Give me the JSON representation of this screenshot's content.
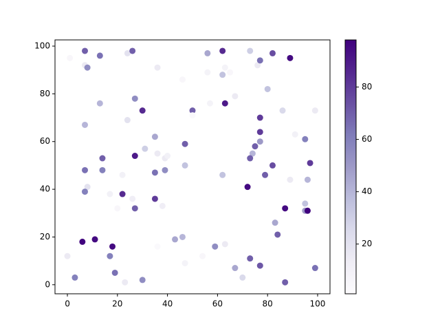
{
  "chart_data": {
    "type": "scatter",
    "x": [
      1,
      7,
      7,
      8,
      13,
      24,
      26,
      36,
      46,
      56,
      56,
      62,
      62,
      63,
      65,
      73,
      76,
      77,
      82,
      89,
      13,
      27,
      30,
      24,
      7,
      50,
      50,
      57,
      63,
      67,
      80,
      86,
      99,
      77,
      77,
      77,
      75,
      74,
      73,
      91,
      95,
      97,
      31,
      35,
      36,
      39,
      40,
      27,
      47,
      47,
      14,
      7,
      14,
      22,
      35,
      39,
      62,
      82,
      79,
      89,
      96,
      72,
      8,
      7,
      17,
      22,
      26,
      35,
      38,
      20,
      27,
      95,
      95,
      96,
      87,
      83,
      84,
      6,
      11,
      18,
      17,
      36,
      43,
      46,
      54,
      59,
      63,
      0,
      3,
      19,
      23,
      30,
      47,
      67,
      70,
      73,
      77,
      87,
      99
    ],
    "y": [
      95,
      98,
      92,
      91,
      96,
      97,
      98,
      91,
      86,
      97,
      89,
      98,
      88,
      91,
      89,
      98,
      92,
      94,
      97,
      95,
      76,
      78,
      73,
      69,
      67,
      73,
      71,
      76,
      76,
      79,
      82,
      73,
      73,
      70,
      64,
      60,
      58,
      55,
      53,
      63,
      61,
      51,
      57,
      62,
      55,
      53,
      54,
      54,
      59,
      50,
      53,
      48,
      48,
      46,
      47,
      48,
      46,
      50,
      46,
      44,
      44,
      41,
      41,
      39,
      38,
      38,
      36,
      36,
      33,
      32,
      32,
      34,
      31,
      31,
      32,
      26,
      21,
      18,
      19,
      16,
      12,
      16,
      19,
      20,
      12,
      16,
      17,
      12,
      3,
      5,
      1,
      2,
      9,
      7,
      3,
      11,
      8,
      1,
      7
    ],
    "c": [
      5,
      70,
      15,
      55,
      65,
      20,
      70,
      15,
      5,
      45,
      8,
      85,
      35,
      8,
      5,
      30,
      15,
      65,
      75,
      95,
      40,
      55,
      85,
      20,
      40,
      70,
      3,
      8,
      90,
      15,
      35,
      25,
      15,
      80,
      80,
      50,
      70,
      40,
      70,
      10,
      60,
      80,
      30,
      45,
      15,
      15,
      10,
      90,
      70,
      35,
      70,
      65,
      60,
      10,
      65,
      55,
      35,
      75,
      70,
      15,
      40,
      95,
      20,
      60,
      10,
      85,
      12,
      80,
      12,
      5,
      70,
      35,
      50,
      98,
      95,
      45,
      70,
      97,
      95,
      95,
      60,
      3,
      45,
      40,
      5,
      55,
      15,
      15,
      60,
      65,
      15,
      55,
      8,
      45,
      25,
      70,
      72,
      70,
      65
    ],
    "xlim": [
      -4.95,
      104.95
    ],
    "ylim": [
      -3.8,
      102.6
    ],
    "xticks": [
      0,
      20,
      40,
      60,
      80,
      100
    ],
    "yticks": [
      0,
      20,
      40,
      60,
      80,
      100
    ],
    "clim": [
      1,
      98
    ],
    "cticks": [
      20,
      40,
      60,
      80
    ],
    "colormap": [
      "#fcfbfd",
      "#efedf5",
      "#dadaeb",
      "#bcbddc",
      "#9e9ac8",
      "#807dba",
      "#6a51a3",
      "#54278f",
      "#3f007d"
    ]
  }
}
